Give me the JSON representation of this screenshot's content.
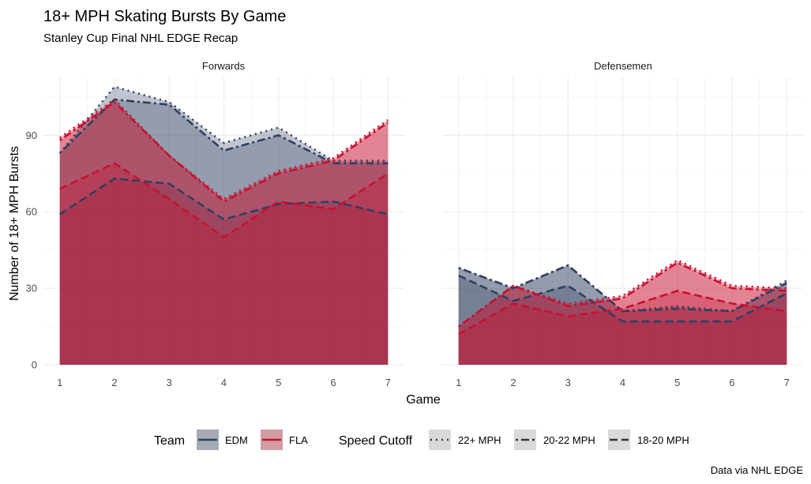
{
  "chart_data": {
    "type": "area",
    "title": "18+ MPH Skating Bursts By Game",
    "subtitle": "Stanley Cup Final NHL EDGE Recap",
    "xlabel": "Game",
    "ylabel": "Number of 18+ MPH Bursts",
    "caption": "Data via NHL EDGE",
    "x": [
      1,
      2,
      3,
      4,
      5,
      6,
      7
    ],
    "x_ticks": [
      "1",
      "2",
      "3",
      "4",
      "5",
      "6",
      "7"
    ],
    "y_ticks": [
      "0",
      "30",
      "60",
      "90"
    ],
    "ylim": [
      0,
      113
    ],
    "colors": {
      "EDM": "#2E3F61",
      "FLA": "#C8102E"
    },
    "facets": [
      {
        "name": "Forwards",
        "series": [
          {
            "team": "EDM",
            "cutoff": "22+ MPH",
            "values": [
              83,
              109,
              103,
              87,
              93,
              80,
              80
            ]
          },
          {
            "team": "EDM",
            "cutoff": "20-22 MPH",
            "values": [
              83,
              104,
              102,
              84,
              90,
              79,
              79
            ]
          },
          {
            "team": "EDM",
            "cutoff": "18-20 MPH",
            "values": [
              59,
              73,
              71,
              57,
              63,
              64,
              59
            ]
          },
          {
            "team": "FLA",
            "cutoff": "22+ MPH",
            "values": [
              89,
              104,
              82,
              65,
              76,
              81,
              96
            ]
          },
          {
            "team": "FLA",
            "cutoff": "20-22 MPH",
            "values": [
              88,
              103,
              82,
              64,
              75,
              80,
              95
            ]
          },
          {
            "team": "FLA",
            "cutoff": "18-20 MPH",
            "values": [
              69,
              79,
              65,
              50,
              64,
              61,
              75
            ]
          }
        ]
      },
      {
        "name": "Defensemen",
        "series": [
          {
            "team": "EDM",
            "cutoff": "22+ MPH",
            "values": [
              38,
              30,
              39,
              21,
              23,
              21,
              33
            ]
          },
          {
            "team": "EDM",
            "cutoff": "20-22 MPH",
            "values": [
              38,
              30,
              39,
              21,
              22,
              21,
              32
            ]
          },
          {
            "team": "EDM",
            "cutoff": "18-20 MPH",
            "values": [
              35,
              25,
              31,
              17,
              17,
              17,
              28
            ]
          },
          {
            "team": "FLA",
            "cutoff": "22+ MPH",
            "values": [
              15,
              31,
              24,
              27,
              41,
              31,
              30
            ]
          },
          {
            "team": "FLA",
            "cutoff": "20-22 MPH",
            "values": [
              15,
              31,
              23,
              26,
              40,
              30,
              29
            ]
          },
          {
            "team": "FLA",
            "cutoff": "18-20 MPH",
            "values": [
              12,
              24,
              19,
              22,
              29,
              24,
              21
            ]
          }
        ]
      }
    ],
    "legend": {
      "position": "bottom",
      "team_title": "Team",
      "teams": [
        "EDM",
        "FLA"
      ],
      "cutoff_title": "Speed Cutoff",
      "cutoffs": [
        "22+ MPH",
        "20-22 MPH",
        "18-20 MPH"
      ]
    }
  }
}
